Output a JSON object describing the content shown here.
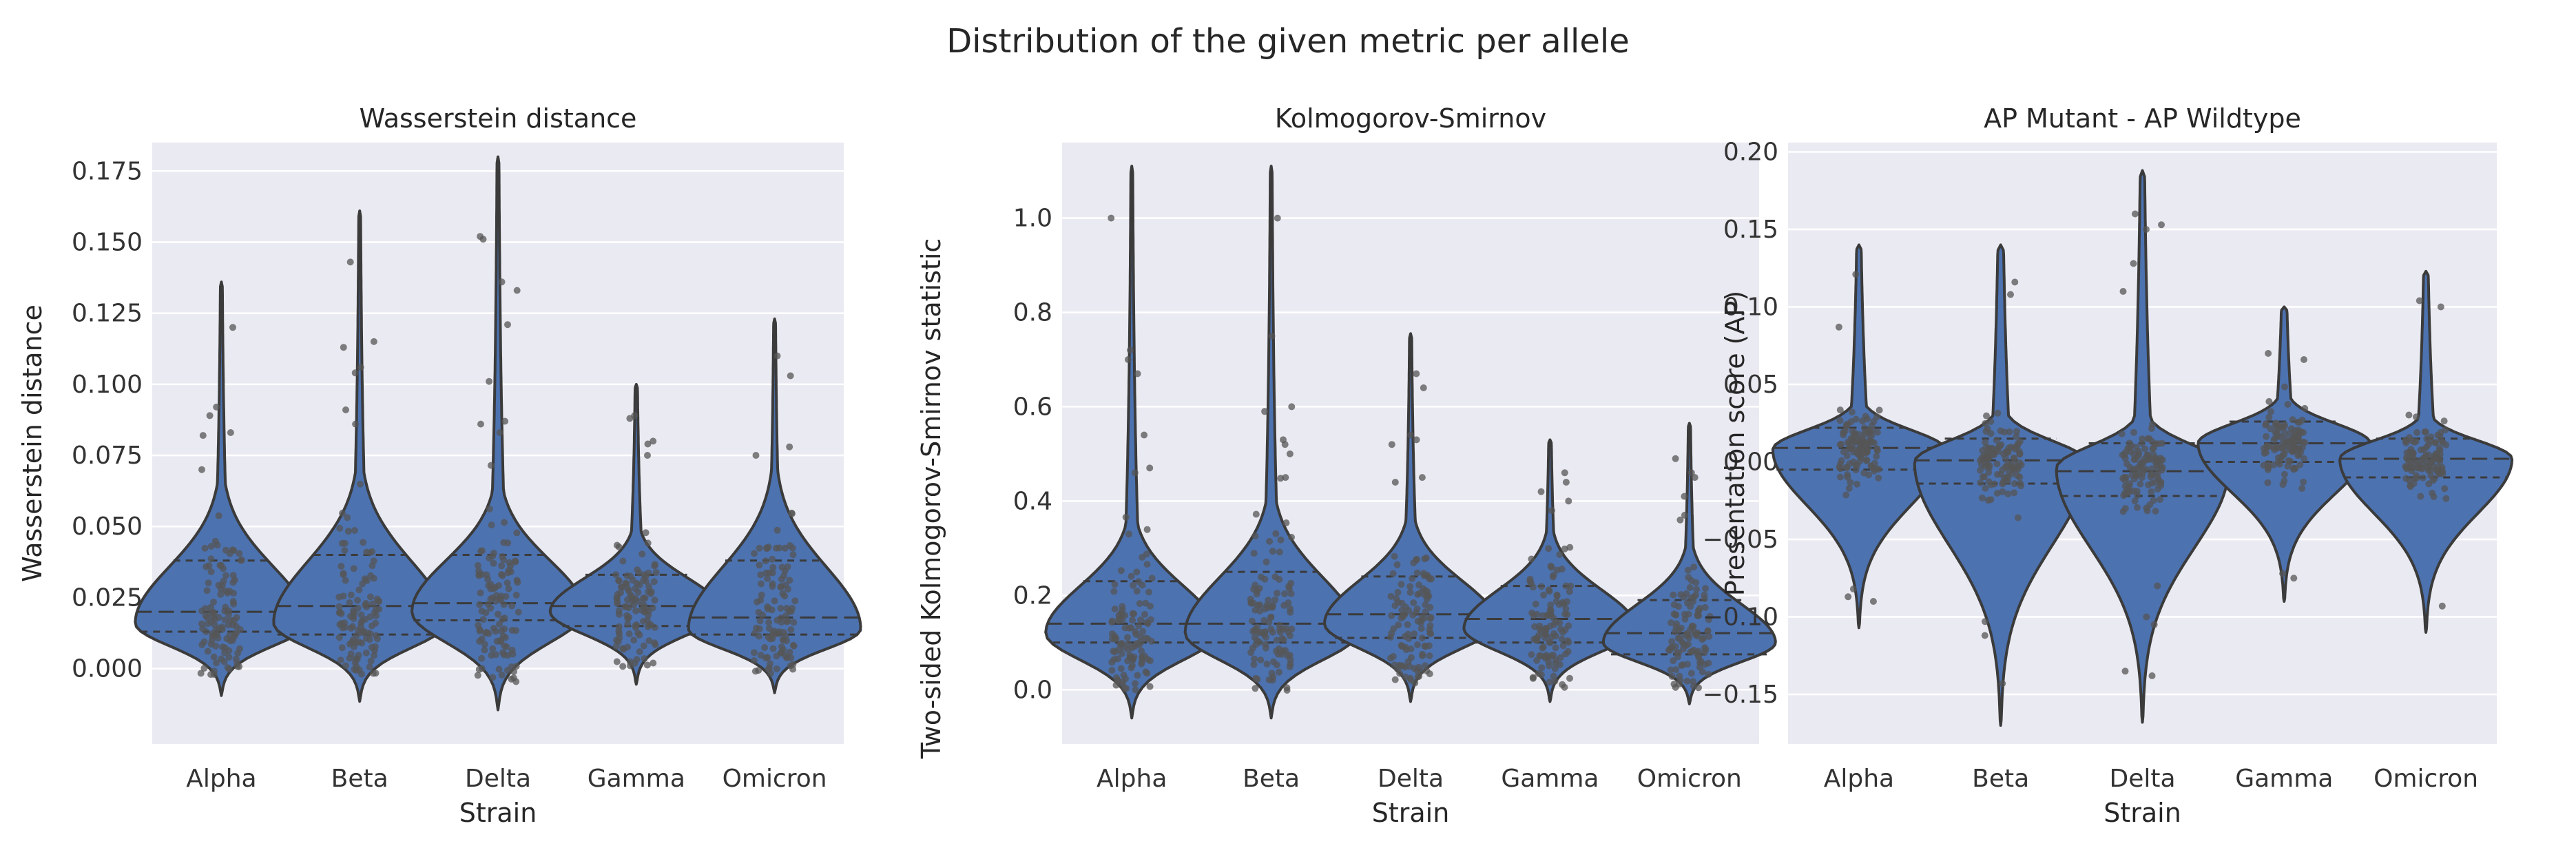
{
  "figure": {
    "title": "Distribution of the given metric per allele"
  },
  "colors": {
    "panel_bg": "#eaeaf2",
    "grid": "#ffffff",
    "violin_fill": "#4c72b0",
    "violin_edge": "#3b3b3b",
    "points": "#555555"
  },
  "chart_data": [
    {
      "type": "violin",
      "title": "Wasserstein distance",
      "xlabel": "Strain",
      "ylabel": "Wasserstein distance",
      "categories": [
        "Alpha",
        "Beta",
        "Delta",
        "Gamma",
        "Omicron"
      ],
      "ylim": [
        -0.0265,
        0.185
      ],
      "yticks": [
        0.0,
        0.025,
        0.05,
        0.075,
        0.1,
        0.125,
        0.15,
        0.175
      ],
      "ytick_labels": [
        "0.000",
        "0.025",
        "0.050",
        "0.075",
        "0.100",
        "0.125",
        "0.150",
        "0.175"
      ],
      "grid": true,
      "violins": [
        {
          "name": "Alpha",
          "min": -0.0095,
          "max": 0.136,
          "q1": 0.013,
          "median": 0.02,
          "q3": 0.038,
          "mode": 0.016,
          "outliers": [
            0.12,
            0.092,
            0.089,
            0.083,
            0.082,
            0.07
          ]
        },
        {
          "name": "Beta",
          "min": -0.0115,
          "max": 0.161,
          "q1": 0.012,
          "median": 0.022,
          "q3": 0.04,
          "mode": 0.016,
          "outliers": [
            0.143,
            0.115,
            0.113,
            0.106,
            0.104,
            0.091,
            0.086
          ]
        },
        {
          "name": "Delta",
          "min": -0.0145,
          "max": 0.18,
          "q1": 0.017,
          "median": 0.023,
          "q3": 0.04,
          "mode": 0.02,
          "outliers": [
            0.152,
            0.151,
            0.136,
            0.133,
            0.121,
            0.101,
            0.087,
            0.086,
            0.083
          ]
        },
        {
          "name": "Gamma",
          "min": -0.0055,
          "max": 0.1,
          "q1": 0.015,
          "median": 0.022,
          "q3": 0.033,
          "mode": 0.02,
          "outliers": [
            0.089,
            0.088,
            0.08,
            0.079,
            0.075
          ]
        },
        {
          "name": "Omicron",
          "min": -0.0085,
          "max": 0.123,
          "q1": 0.012,
          "median": 0.018,
          "q3": 0.038,
          "mode": 0.014,
          "outliers": [
            0.11,
            0.103,
            0.078,
            0.075
          ]
        }
      ]
    },
    {
      "type": "violin",
      "title": "Kolmogorov-Smirnov",
      "xlabel": "Strain",
      "ylabel": "Two-sided Kolmogorov-Smirnov statistic",
      "categories": [
        "Alpha",
        "Beta",
        "Delta",
        "Gamma",
        "Omicron"
      ],
      "ylim": [
        -0.115,
        1.16
      ],
      "yticks": [
        0.0,
        0.2,
        0.4,
        0.6,
        0.8,
        1.0
      ],
      "ytick_labels": [
        "0.0",
        "0.2",
        "0.4",
        "0.6",
        "0.8",
        "1.0"
      ],
      "grid": true,
      "violins": [
        {
          "name": "Alpha",
          "min": -0.06,
          "max": 1.11,
          "q1": 0.1,
          "median": 0.14,
          "q3": 0.23,
          "mode": 0.12,
          "outliers": [
            1.0,
            0.72,
            0.7,
            0.67,
            0.54,
            0.47,
            0.46
          ]
        },
        {
          "name": "Beta",
          "min": -0.06,
          "max": 1.11,
          "q1": 0.1,
          "median": 0.14,
          "q3": 0.25,
          "mode": 0.12,
          "outliers": [
            1.0,
            0.75,
            0.6,
            0.59,
            0.53,
            0.52,
            0.5,
            0.45
          ]
        },
        {
          "name": "Delta",
          "min": -0.025,
          "max": 0.755,
          "q1": 0.11,
          "median": 0.16,
          "q3": 0.24,
          "mode": 0.14,
          "outliers": [
            0.67,
            0.64,
            0.54,
            0.53,
            0.52,
            0.45,
            0.44
          ]
        },
        {
          "name": "Gamma",
          "min": -0.025,
          "max": 0.53,
          "q1": 0.1,
          "median": 0.15,
          "q3": 0.22,
          "mode": 0.13,
          "outliers": [
            0.46,
            0.44,
            0.42,
            0.4,
            0.38
          ]
        },
        {
          "name": "Omicron",
          "min": -0.03,
          "max": 0.565,
          "q1": 0.075,
          "median": 0.12,
          "q3": 0.19,
          "mode": 0.1,
          "outliers": [
            0.49,
            0.46,
            0.45,
            0.41,
            0.37,
            0.36
          ]
        }
      ]
    },
    {
      "type": "violin",
      "title": "AP Mutant - AP Wildtype",
      "xlabel": "Strain",
      "ylabel": "Presentation score (AP)",
      "categories": [
        "Alpha",
        "Beta",
        "Delta",
        "Gamma",
        "Omicron"
      ],
      "ylim": [
        -0.182,
        0.206
      ],
      "yticks": [
        -0.15,
        -0.1,
        -0.05,
        0.0,
        0.05,
        0.1,
        0.15,
        0.2
      ],
      "ytick_labels": [
        "−0.15",
        "−0.10",
        "−0.05",
        "0.00",
        "0.05",
        "0.10",
        "0.15",
        "0.20"
      ],
      "grid": true,
      "violins": [
        {
          "name": "Alpha",
          "min": -0.107,
          "max": 0.14,
          "q1": -0.005,
          "median": 0.009,
          "q3": 0.022,
          "mode": 0.008,
          "outliers": [
            0.121,
            0.087,
            -0.082,
            -0.087,
            -0.09
          ]
        },
        {
          "name": "Beta",
          "min": -0.17,
          "max": 0.14,
          "q1": -0.014,
          "median": 0.001,
          "q3": 0.015,
          "mode": 0.0,
          "outliers": [
            0.116,
            0.108,
            -0.103,
            -0.112,
            -0.143
          ]
        },
        {
          "name": "Delta",
          "min": -0.168,
          "max": 0.188,
          "q1": -0.022,
          "median": -0.006,
          "q3": 0.012,
          "mode": -0.004,
          "outliers": [
            0.16,
            0.153,
            0.15,
            0.128,
            0.11,
            -0.08,
            -0.1,
            -0.105,
            -0.135,
            -0.138
          ]
        },
        {
          "name": "Gamma",
          "min": -0.09,
          "max": 0.1,
          "q1": 0.0,
          "median": 0.012,
          "q3": 0.026,
          "mode": 0.012,
          "outliers": [
            0.07,
            0.066,
            -0.072,
            -0.075
          ]
        },
        {
          "name": "Omicron",
          "min": -0.11,
          "max": 0.123,
          "q1": -0.01,
          "median": 0.002,
          "q3": 0.015,
          "mode": 0.002,
          "outliers": [
            0.104,
            0.1,
            -0.093
          ]
        }
      ]
    }
  ]
}
